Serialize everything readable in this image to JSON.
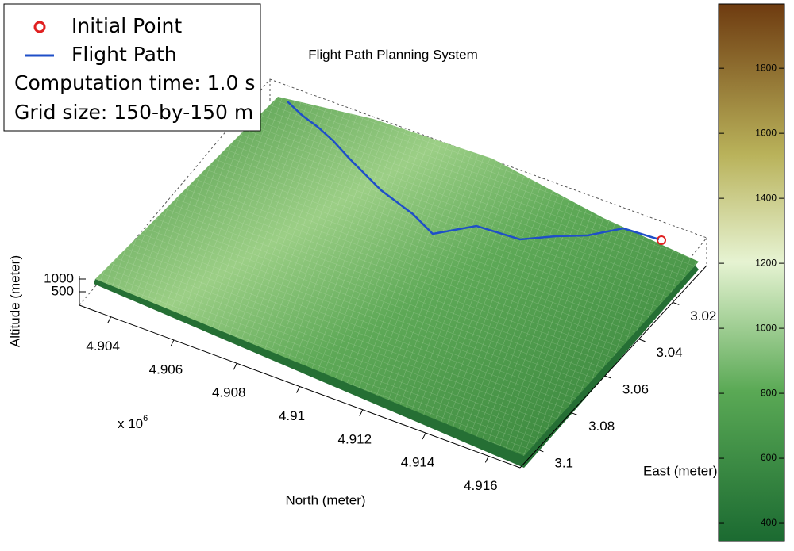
{
  "chart_data": {
    "type": "surface3d",
    "title": "Flight Path Planning System",
    "xlabel": "North (meter)",
    "ylabel": "East (meter)",
    "zlabel": "Altitude (meter)",
    "xlim": [
      4.903,
      4.917
    ],
    "xticks": [
      4.904,
      4.906,
      4.908,
      4.91,
      4.912,
      4.914,
      4.916
    ],
    "xexponent": "x 10",
    "xexponent_power": 6,
    "ylim": [
      3.0,
      3.11
    ],
    "yticks": [
      3.02,
      3.04,
      3.06,
      3.08,
      3.1
    ],
    "zlim": [
      0,
      1000
    ],
    "zticks": [
      500,
      1000
    ],
    "clim": [
      344,
      1998
    ],
    "cticks": [
      400,
      600,
      800,
      1000,
      1200,
      1400,
      1600,
      1800
    ],
    "legend": [
      {
        "name": "Initial Point",
        "color": "#e02020"
      },
      {
        "name": "Flight Path",
        "color": "#1f4fc8"
      }
    ],
    "annotations": [
      "Computation time: 1.0 s",
      "Grid size: 150-by-150 m"
    ]
  }
}
